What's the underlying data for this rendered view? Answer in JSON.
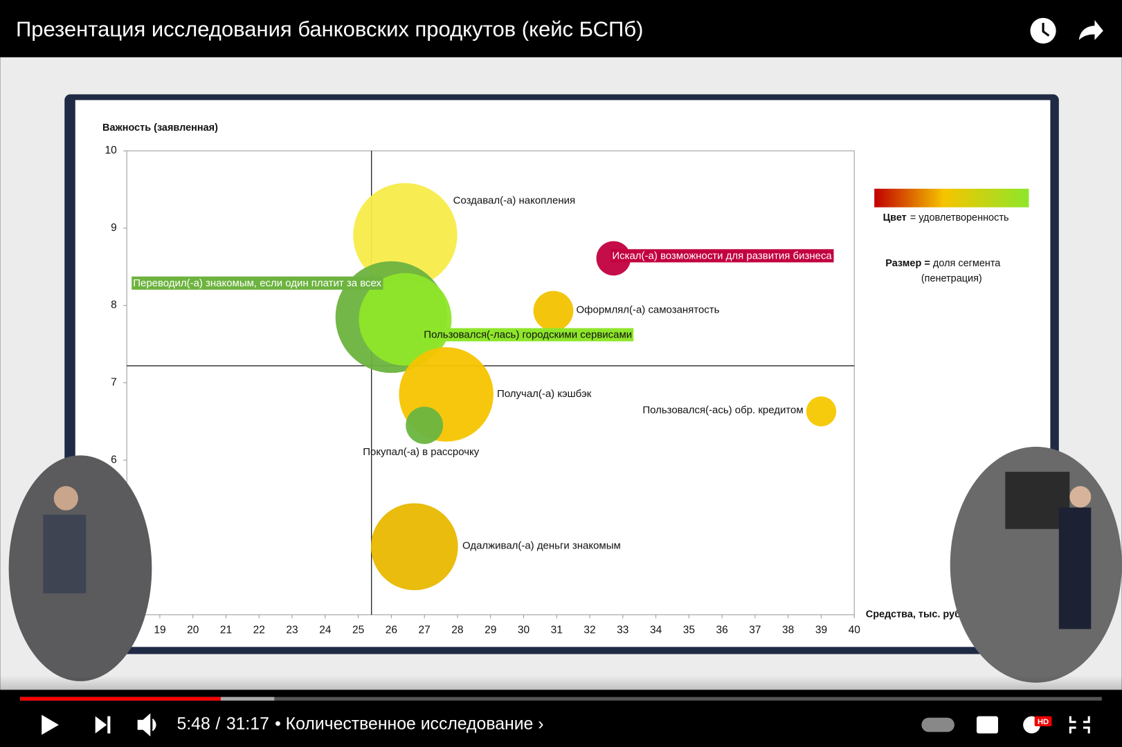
{
  "header": {
    "title": "Презентация исследования банковских продкутов (кейс БСПб)"
  },
  "chart_data": {
    "type": "scatter",
    "y_label": "Важность (заявленная)",
    "x_label": "Средства, тыс. руб.",
    "xlim": [
      18,
      40
    ],
    "xticks": [
      18,
      19,
      20,
      21,
      22,
      23,
      24,
      25,
      26,
      27,
      28,
      29,
      30,
      31,
      32,
      33,
      34,
      35,
      36,
      37,
      38,
      39,
      40
    ],
    "ylim": [
      4,
      10
    ],
    "yticks": [
      6,
      7,
      8,
      9,
      10
    ],
    "divider_x": 25.4,
    "divider_y": 7.22,
    "series": [
      {
        "name": "Создавал(-а) накопления",
        "x": 26.42,
        "y": 8.91,
        "size": 53,
        "color": "#f7ec4a"
      },
      {
        "name": "Искал(-а) возможности для развития бизнеса",
        "x": 32.72,
        "y": 8.61,
        "size": 5.8,
        "color": "#c2003f",
        "label_bg": "#c2003f"
      },
      {
        "name": "Переводил(-а) знакомым, если один платит за всех",
        "x": 26.0,
        "y": 7.85,
        "size": 61,
        "color": "#6db33f",
        "label_bg": "#6db33f"
      },
      {
        "name": "Пользовался(-лась) городскими сервисами",
        "x": 26.42,
        "y": 7.82,
        "size": 42,
        "color": "#8ee62a",
        "label_bg": "#8ee62a"
      },
      {
        "name": "Оформлял(-а) самозанятость",
        "x": 30.9,
        "y": 7.93,
        "size": 7.8,
        "color": "#f2c200"
      },
      {
        "name": "Получал(-а) кэшбэк",
        "x": 27.66,
        "y": 6.85,
        "size": 43.6,
        "color": "#f5c400"
      },
      {
        "name": "Покупал(-а) в рассрочку",
        "x": 27.0,
        "y": 6.45,
        "size": 6.8,
        "color": "#6ab540"
      },
      {
        "name": "Пользовался(-ась) обр. кредитом",
        "x": 39.0,
        "y": 6.63,
        "size": 4.4,
        "color": "#f5c800"
      },
      {
        "name": "Одалживал(-а) деньги знакомым",
        "x": 26.7,
        "y": 4.88,
        "size": 37,
        "color": "#e8b800"
      }
    ],
    "legend": {
      "color_key": "Цвет",
      "color_text": "= удовлетворенность",
      "size_key": "Размер =",
      "size_text": "доля сегмента",
      "size_note": "(пенетрация)",
      "gradient": [
        "#c00000",
        "#f5c400",
        "#8ee62a"
      ]
    }
  },
  "player": {
    "current": "5:48",
    "separator": "/",
    "duration": "31:17",
    "chapter": "• Количественное исследование ›",
    "current_seconds": 348,
    "duration_seconds": 1877,
    "buffered_seconds": 441,
    "badge": "HD"
  }
}
